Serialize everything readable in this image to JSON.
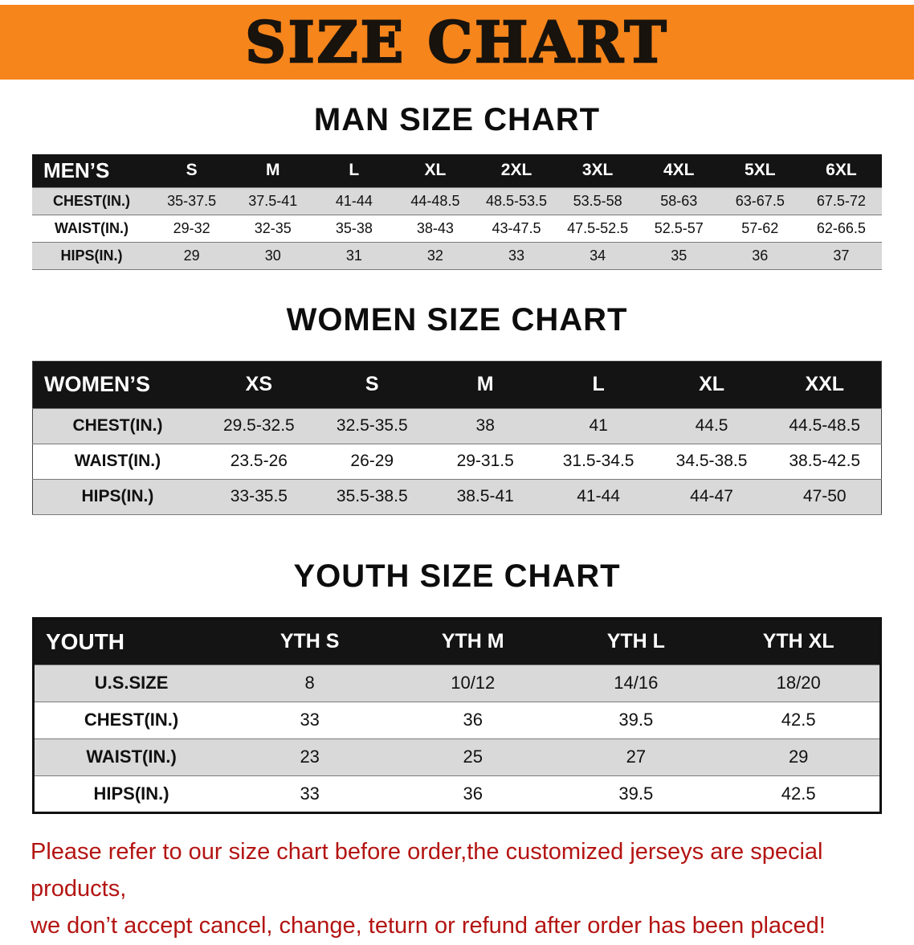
{
  "banner": {
    "title": "SIZE CHART"
  },
  "sections": {
    "men": {
      "heading": "MAN SIZE CHART"
    },
    "women": {
      "heading": "WOMEN SIZE CHART"
    },
    "youth": {
      "heading": "YOUTH SIZE CHART"
    }
  },
  "tables": {
    "men": {
      "corner": "MEN’S",
      "columns": [
        "S",
        "M",
        "L",
        "XL",
        "2XL",
        "3XL",
        "4XL",
        "5XL",
        "6XL"
      ],
      "rows": [
        {
          "label": "CHEST(IN.)",
          "values": [
            "35-37.5",
            "37.5-41",
            "41-44",
            "44-48.5",
            "48.5-53.5",
            "53.5-58",
            "58-63",
            "63-67.5",
            "67.5-72"
          ]
        },
        {
          "label": "WAIST(IN.)",
          "values": [
            "29-32",
            "32-35",
            "35-38",
            "38-43",
            "43-47.5",
            "47.5-52.5",
            "52.5-57",
            "57-62",
            "62-66.5"
          ]
        },
        {
          "label": "HIPS(IN.)",
          "values": [
            "29",
            "30",
            "31",
            "32",
            "33",
            "34",
            "35",
            "36",
            "37"
          ]
        }
      ]
    },
    "women": {
      "corner": "WOMEN’S",
      "columns": [
        "XS",
        "S",
        "M",
        "L",
        "XL",
        "XXL"
      ],
      "rows": [
        {
          "label": "CHEST(IN.)",
          "values": [
            "29.5-32.5",
            "32.5-35.5",
            "38",
            "41",
            "44.5",
            "44.5-48.5"
          ]
        },
        {
          "label": "WAIST(IN.)",
          "values": [
            "23.5-26",
            "26-29",
            "29-31.5",
            "31.5-34.5",
            "34.5-38.5",
            "38.5-42.5"
          ]
        },
        {
          "label": "HIPS(IN.)",
          "values": [
            "33-35.5",
            "35.5-38.5",
            "38.5-41",
            "41-44",
            "44-47",
            "47-50"
          ]
        }
      ]
    },
    "youth": {
      "corner": "YOUTH",
      "columns": [
        "YTH S",
        "YTH M",
        "YTH L",
        "YTH XL"
      ],
      "rows": [
        {
          "label": "U.S.SIZE",
          "values": [
            "8",
            "10/12",
            "14/16",
            "18/20"
          ]
        },
        {
          "label": "CHEST(IN.)",
          "values": [
            "33",
            "36",
            "39.5",
            "42.5"
          ]
        },
        {
          "label": "WAIST(IN.)",
          "values": [
            "23",
            "25",
            "27",
            "29"
          ]
        },
        {
          "label": "HIPS(IN.)",
          "values": [
            "33",
            "36",
            "39.5",
            "42.5"
          ]
        }
      ]
    }
  },
  "footer": {
    "line1": "Please refer to our size chart before order,the customized jerseys are special products,",
    "line2": "we don’t accept cancel, change, teturn or refund after order has been placed!"
  },
  "colors": {
    "banner_bg": "#f6851c",
    "header_bg": "#141414",
    "row_alt_bg": "#d9d9d9",
    "footer_text": "#b31412"
  }
}
